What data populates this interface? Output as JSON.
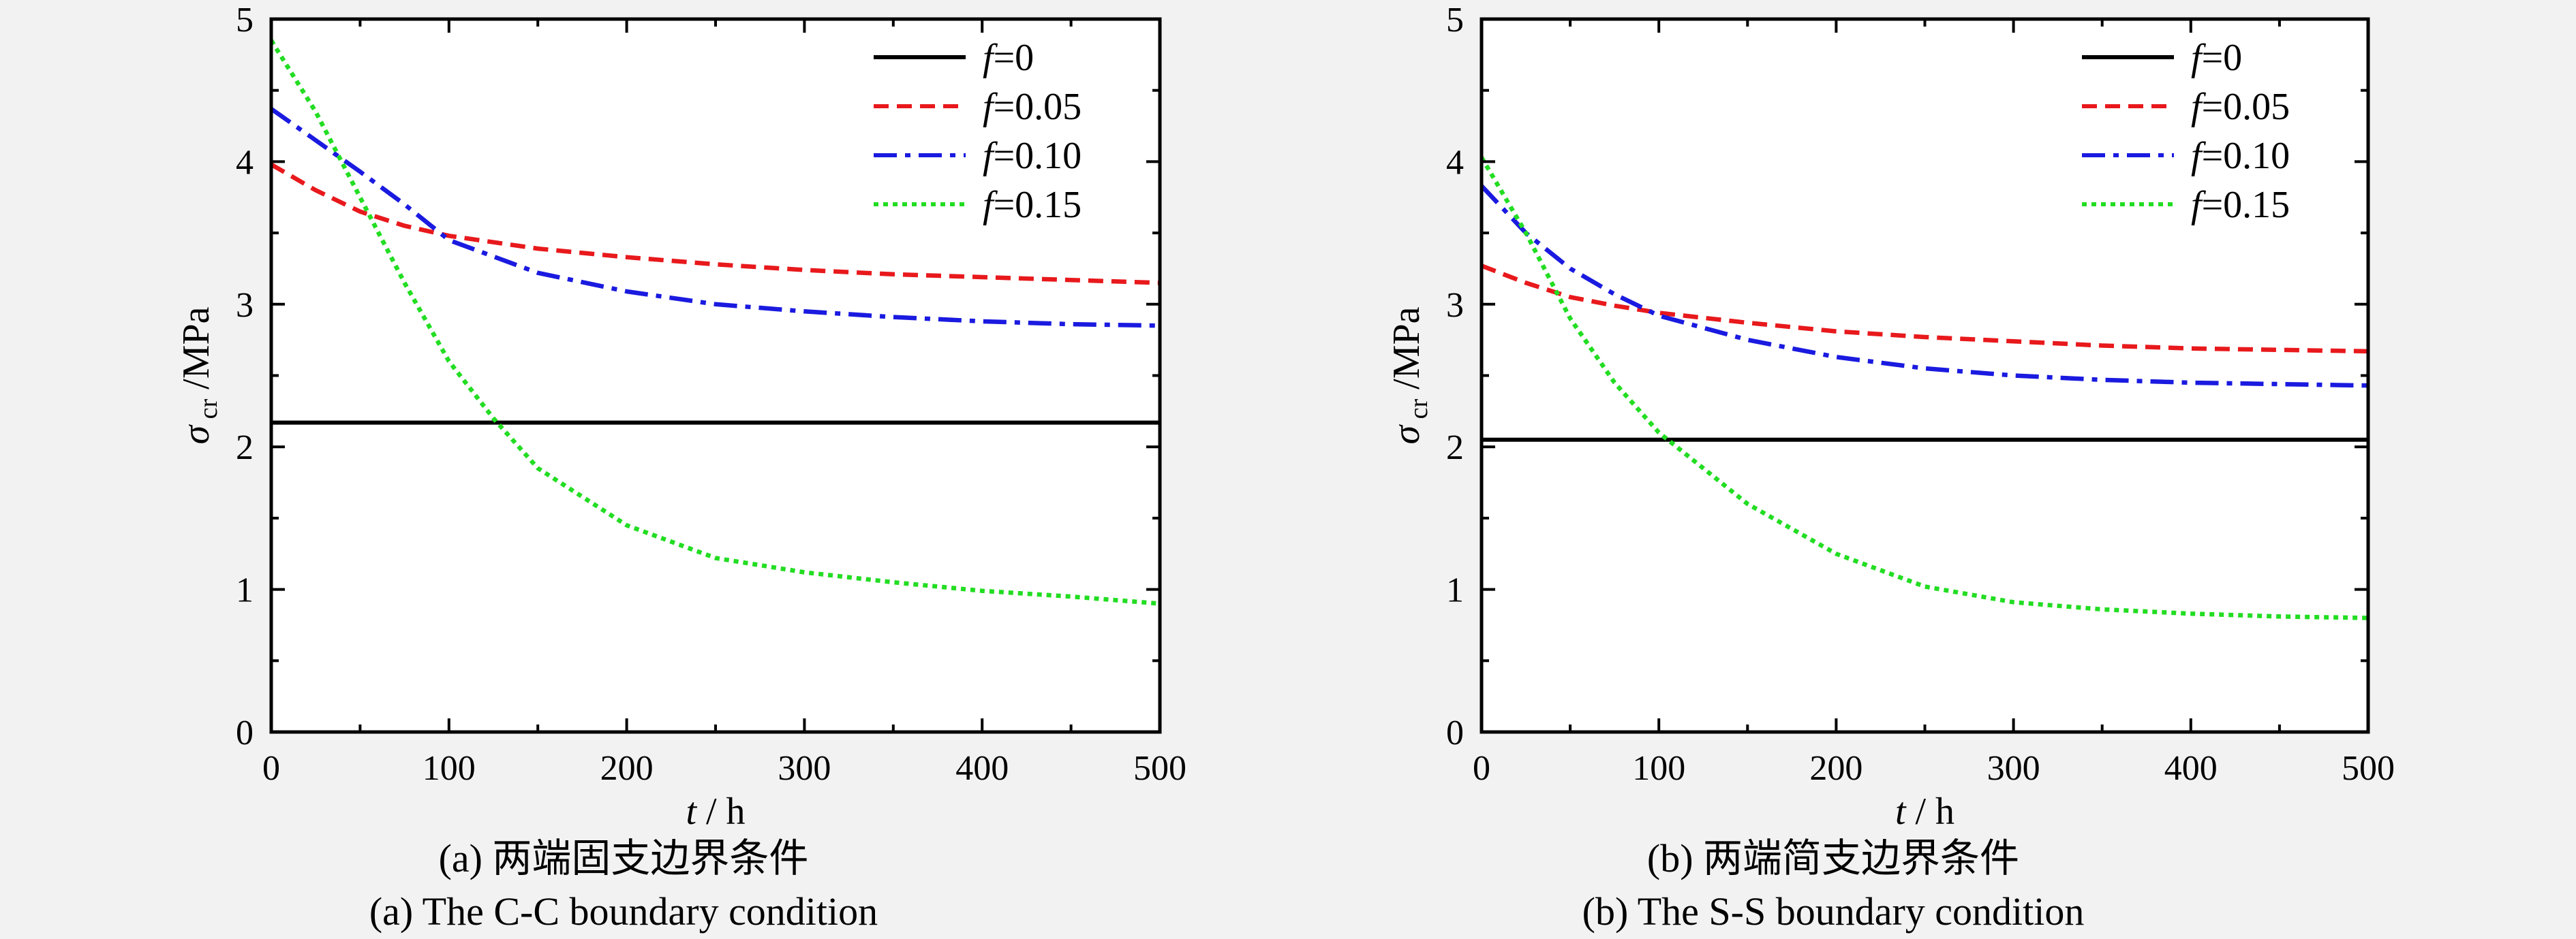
{
  "chart_data": [
    {
      "type": "line",
      "caption_cn": "(a) 两端固支边界条件",
      "caption_en": "(a) The C-C boundary condition",
      "xlabel": {
        "var": "t",
        "unit": " / h"
      },
      "ylabel": {
        "var": "σ",
        "sub": "cr",
        "unit": " /MPa"
      },
      "xlim": [
        0,
        500
      ],
      "ylim": [
        0,
        5
      ],
      "xticks": [
        "0",
        "100",
        "200",
        "300",
        "400",
        "500"
      ],
      "yticks": [
        "0",
        "1",
        "2",
        "3",
        "4",
        "5"
      ],
      "grid": false,
      "legend": "top-right",
      "series": [
        {
          "name": "f=0",
          "color": "#000000",
          "dash": "solid",
          "x": [
            0,
            500
          ],
          "y": [
            2.17,
            2.17
          ]
        },
        {
          "name": "f=0.05",
          "color": "#e8191c",
          "dash": "dash",
          "x": [
            0,
            25,
            50,
            75,
            100,
            150,
            200,
            250,
            300,
            350,
            400,
            450,
            500
          ],
          "y": [
            3.98,
            3.8,
            3.65,
            3.55,
            3.48,
            3.39,
            3.33,
            3.28,
            3.24,
            3.21,
            3.19,
            3.17,
            3.15
          ]
        },
        {
          "name": "f=0.10",
          "color": "#1a1ae0",
          "dash": "dashdot",
          "x": [
            0,
            25,
            50,
            75,
            100,
            150,
            200,
            250,
            300,
            350,
            400,
            450,
            500
          ],
          "y": [
            4.37,
            4.15,
            3.93,
            3.7,
            3.45,
            3.22,
            3.09,
            3.0,
            2.95,
            2.91,
            2.88,
            2.86,
            2.85
          ]
        },
        {
          "name": "f=0.15",
          "color": "#22dd22",
          "dash": "dot",
          "x": [
            0,
            25,
            50,
            75,
            100,
            125,
            150,
            200,
            250,
            300,
            350,
            400,
            450,
            500
          ],
          "y": [
            4.85,
            4.35,
            3.75,
            3.15,
            2.6,
            2.2,
            1.85,
            1.45,
            1.22,
            1.12,
            1.05,
            0.99,
            0.95,
            0.9
          ]
        }
      ]
    },
    {
      "type": "line",
      "caption_cn": "(b) 两端简支边界条件",
      "caption_en": "(b) The S-S boundary condition",
      "xlabel": {
        "var": "t",
        "unit": " / h"
      },
      "ylabel": {
        "var": "σ",
        "sub": "cr",
        "unit": " /MPa"
      },
      "xlim": [
        0,
        500
      ],
      "ylim": [
        0,
        5
      ],
      "xticks": [
        "0",
        "100",
        "200",
        "300",
        "400",
        "500"
      ],
      "yticks": [
        "0",
        "1",
        "2",
        "3",
        "4",
        "5"
      ],
      "grid": false,
      "legend": "top-right",
      "series": [
        {
          "name": "f=0",
          "color": "#000000",
          "dash": "solid",
          "x": [
            0,
            500
          ],
          "y": [
            2.05,
            2.05
          ]
        },
        {
          "name": "f=0.05",
          "color": "#e8191c",
          "dash": "dash",
          "x": [
            0,
            25,
            50,
            75,
            100,
            150,
            200,
            250,
            300,
            350,
            400,
            450,
            500
          ],
          "y": [
            3.27,
            3.15,
            3.05,
            2.99,
            2.94,
            2.87,
            2.81,
            2.77,
            2.74,
            2.71,
            2.69,
            2.68,
            2.67
          ]
        },
        {
          "name": "f=0.10",
          "color": "#1a1ae0",
          "dash": "dashdot",
          "x": [
            0,
            25,
            50,
            75,
            100,
            150,
            200,
            250,
            300,
            350,
            400,
            450,
            500
          ],
          "y": [
            3.83,
            3.5,
            3.25,
            3.07,
            2.92,
            2.75,
            2.63,
            2.55,
            2.5,
            2.47,
            2.45,
            2.44,
            2.43
          ]
        },
        {
          "name": "f=0.15",
          "color": "#22dd22",
          "dash": "dot",
          "x": [
            0,
            25,
            50,
            75,
            100,
            125,
            150,
            200,
            250,
            300,
            350,
            400,
            450,
            500
          ],
          "y": [
            4.03,
            3.5,
            2.9,
            2.45,
            2.1,
            1.85,
            1.6,
            1.25,
            1.02,
            0.91,
            0.86,
            0.83,
            0.81,
            0.8
          ]
        }
      ]
    }
  ]
}
